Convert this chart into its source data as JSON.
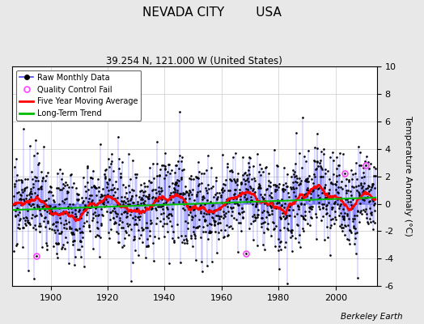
{
  "title": "NEVADA CITY        USA",
  "subtitle": "39.254 N, 121.000 W (United States)",
  "ylabel": "Temperature Anomaly (°C)",
  "attribution": "Berkeley Earth",
  "ylim": [
    -6,
    10
  ],
  "yticks": [
    -6,
    -4,
    -2,
    0,
    2,
    4,
    6,
    8,
    10
  ],
  "year_start": 1887,
  "year_end": 2013,
  "seed": 17,
  "background_color": "#e8e8e8",
  "plot_bg_color": "#ffffff",
  "bar_color": "#4444ff",
  "line_color": "#ff0000",
  "trend_color": "#00bb00",
  "dot_color": "#000000",
  "qc_color": "#ff44ff",
  "title_fontsize": 11,
  "subtitle_fontsize": 8.5,
  "ylabel_fontsize": 8,
  "tick_fontsize": 8
}
